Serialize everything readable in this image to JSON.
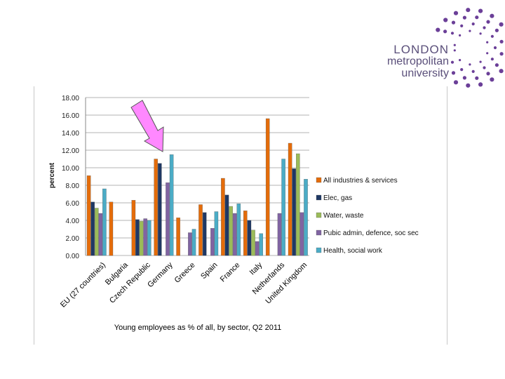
{
  "logo": {
    "line1": "LONDON",
    "line2": "metropolitan",
    "line3": "university",
    "dot_color": "#6b3f98"
  },
  "chart_data": {
    "type": "bar",
    "title": "",
    "caption": "Young employees as % of all, by sector, Q2  2011",
    "xlabel": "",
    "ylabel": "percent",
    "ylim": [
      0,
      18
    ],
    "yticks": [
      "0.00",
      "2.00",
      "4.00",
      "6.00",
      "8.00",
      "10.00",
      "12.00",
      "14.00",
      "16.00",
      "18.00"
    ],
    "grid": true,
    "legend_position": "right",
    "categories": [
      "EU (27 countries)",
      "Bulgaria",
      "Czech Republic",
      "Germany",
      "Greece",
      "Spain",
      "France",
      "Italy",
      "Netherlands",
      "United Kingdom"
    ],
    "series": [
      {
        "name": "All industries & services",
        "color": "#e46c0a",
        "values": [
          9.1,
          6.1,
          6.3,
          11.0,
          4.3,
          5.8,
          8.8,
          5.1,
          15.6,
          12.8
        ]
      },
      {
        "name": "Elec, gas",
        "color": "#1f3864",
        "values": [
          6.1,
          0,
          4.1,
          10.5,
          0,
          4.9,
          6.9,
          4.0,
          0,
          9.9
        ]
      },
      {
        "name": "Water, waste",
        "color": "#9bbb59",
        "values": [
          5.4,
          0,
          3.9,
          0,
          0,
          0,
          5.6,
          2.9,
          0,
          11.6
        ]
      },
      {
        "name": "Pubic admin, defence, soc sec",
        "color": "#8064a2",
        "values": [
          4.8,
          0,
          4.2,
          8.3,
          2.6,
          3.1,
          4.8,
          1.6,
          4.8,
          4.9
        ]
      },
      {
        "name": "Health, social work",
        "color": "#4bacc6",
        "values": [
          7.6,
          0,
          4.0,
          11.5,
          3.0,
          5.0,
          5.9,
          2.5,
          11.0,
          8.7
        ]
      }
    ],
    "annotation": {
      "type": "arrow",
      "color": "#ff88ff",
      "points_to": "Germany"
    }
  }
}
